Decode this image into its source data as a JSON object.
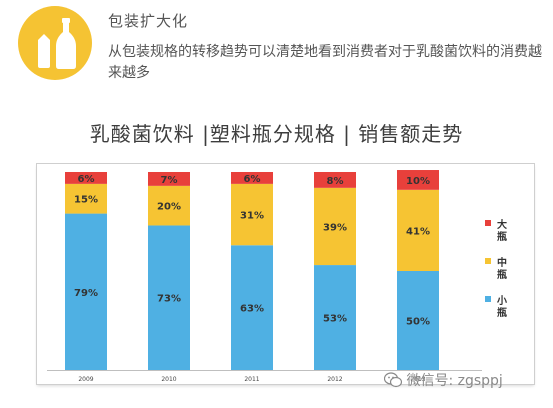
{
  "header": {
    "title": "包装扩大化",
    "description": "从包装规格的转移趋势可以清楚地看到消费者对于乳酸菌饮料的消费越来越多",
    "icon": "bottle-icon",
    "icon_color": "#f5c333"
  },
  "chart_data": {
    "type": "bar",
    "stacked": true,
    "title": "乳酸菌饮料 |塑料瓶分规格 | 销售额走势",
    "categories": [
      "2009",
      "2010",
      "2011",
      "2012",
      "2013"
    ],
    "series": [
      {
        "name": "小瓶",
        "color": "#4fb0e3",
        "values": [
          79,
          73,
          63,
          53,
          50
        ],
        "labels": [
          "79%",
          "73%",
          "63%",
          "53%",
          "50%"
        ]
      },
      {
        "name": "中瓶",
        "color": "#f6c433",
        "values": [
          15,
          20,
          31,
          39,
          41
        ],
        "labels": [
          "15%",
          "20%",
          "31%",
          "39%",
          "41%"
        ]
      },
      {
        "name": "大瓶",
        "color": "#e8403b",
        "values": [
          6,
          7,
          6,
          8,
          10
        ],
        "labels": [
          "6%",
          "7%",
          "6%",
          "8%",
          "10%"
        ]
      }
    ],
    "ylim": [
      0,
      100
    ],
    "legend_position": "right",
    "legend_order": [
      "大瓶",
      "中瓶",
      "小瓶"
    ]
  },
  "watermark": {
    "text": "微信号: zgsppj",
    "icon": "wechat-icon"
  }
}
